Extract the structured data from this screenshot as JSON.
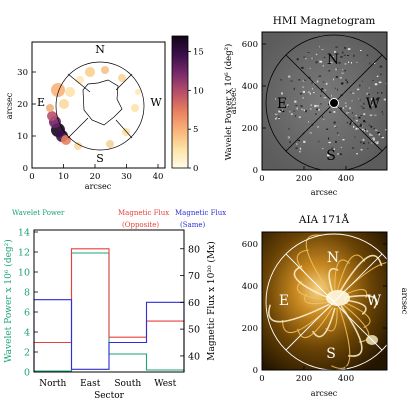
{
  "panel_a": {
    "xlabel": "arcsec",
    "ylabel": "arcsec",
    "xticks": [
      "0",
      "10",
      "20",
      "30",
      "40"
    ],
    "yticks": [
      "0",
      "10",
      "20",
      "30"
    ],
    "sectors": {
      "north": "N",
      "east": "E",
      "south": "S",
      "west": "W"
    },
    "colorbar": {
      "label": "Wavelet Power x 10⁶ (deg²)",
      "ticks": [
        "0",
        "5",
        "10",
        "15"
      ],
      "range": [
        0,
        17
      ],
      "colors": [
        "#fffce8",
        "#fde3a8",
        "#f9b37a",
        "#e8805f",
        "#b8506a",
        "#7a2a6a",
        "#3a0f4a",
        "#120418"
      ]
    }
  },
  "panel_b": {
    "title": "HMI Magnetogram",
    "xlabel": "arcsec",
    "ylabel": "arcsec",
    "xticks": [
      "0",
      "200",
      "400",
      "600"
    ],
    "yticks": [
      "0",
      "200",
      "400",
      "600"
    ],
    "sectors": {
      "north": "N",
      "east": "E",
      "south": "S",
      "west": "W"
    }
  },
  "panel_c": {
    "title": "AIA 171Å",
    "xlabel": "arcsec",
    "ylabel": "arcsec",
    "xticks": [
      "0",
      "200",
      "400",
      "600"
    ],
    "yticks": [
      "0",
      "200",
      "400",
      "600"
    ],
    "sectors": {
      "north": "N",
      "east": "E",
      "south": "S",
      "west": "W"
    }
  },
  "chart_data": {
    "type": "line",
    "xlabel": "Sector",
    "categories": [
      "North",
      "East",
      "South",
      "West"
    ],
    "left_axis": {
      "label": "Wavelet Power x 10⁶ (deg²)",
      "ticks": [
        "0",
        "2",
        "4",
        "6",
        "8",
        "10",
        "12",
        "14"
      ],
      "ylim": [
        0,
        14.2
      ],
      "color": "#1aa37a"
    },
    "right_axis": {
      "label": "Magnetic Flux x 10²⁰ (Mx)",
      "ticks": [
        "40",
        "50",
        "60",
        "70",
        "80"
      ],
      "ylim": [
        34,
        87
      ],
      "color": "#000000"
    },
    "series": [
      {
        "name": "Wavelet Power",
        "axis": "left",
        "color": "#1aa37a",
        "values": [
          0.1,
          11.9,
          1.8,
          0.2
        ]
      },
      {
        "name": "Magnetic Flux (Opposite)",
        "axis": "right",
        "color": "#e8413c",
        "values": [
          45,
          80,
          47,
          53
        ]
      },
      {
        "name": "Magnetic Flux (Same)",
        "axis": "right",
        "color": "#2f2fd6",
        "values": [
          61,
          35,
          45,
          60
        ]
      }
    ],
    "legend": {
      "wavelet": "Wavelet Power",
      "opposite_1": "Magnetic Flux",
      "opposite_2": "(Opposite)",
      "same_1": "Magnetic Flux",
      "same_2": "(Same)"
    }
  }
}
